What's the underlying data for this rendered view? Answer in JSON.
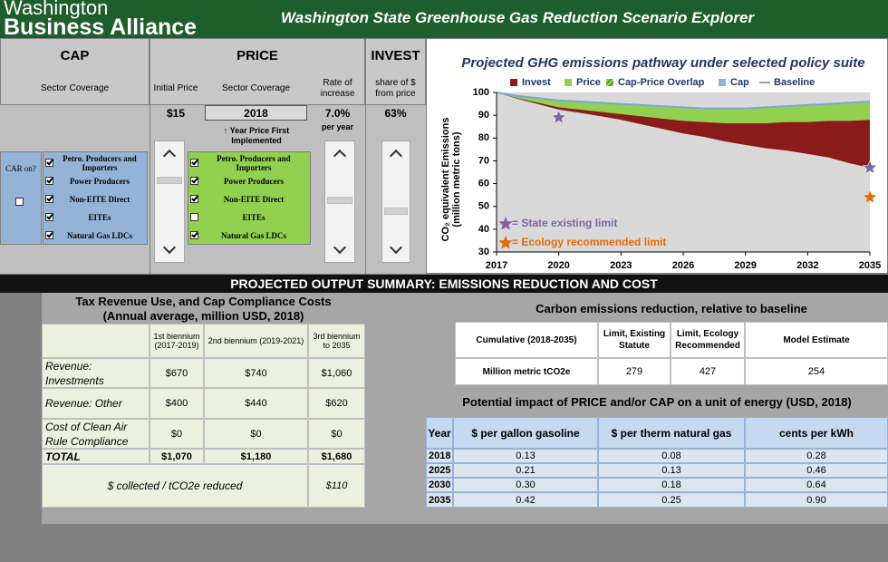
{
  "header": {
    "logo": [
      "Washington",
      "Business Alliance"
    ],
    "title": "Washington State Greenhouse Gas Reduction Scenario Explorer"
  },
  "controls": {
    "sections": [
      "CAP",
      "PRICE",
      "INVEST"
    ],
    "subheaders": [
      "Sector Coverage",
      "Initial Price",
      "Sector Coverage",
      "Rate of increase",
      "share of $ from price"
    ],
    "initial_price": "$15",
    "start_year": "2018",
    "year_note": "↑ Year Price First Implemented",
    "rate": "7.0%",
    "rate_unit": "per year",
    "invest_share": "63%",
    "cap_on_label": "CAR on?",
    "cap_on": false,
    "cap_sectors": [
      {
        "label": "Petro. Producers and Importers",
        "checked": true
      },
      {
        "label": "Power Producers",
        "checked": true
      },
      {
        "label": "Non-EITE Direct",
        "checked": true
      },
      {
        "label": "EITEs",
        "checked": true
      },
      {
        "label": "Natural Gas LDCs",
        "checked": true
      }
    ],
    "price_sectors": [
      {
        "label": "Petro. Producers and Importers",
        "checked": true
      },
      {
        "label": "Power Producers",
        "checked": true
      },
      {
        "label": "Non-EITE Direct",
        "checked": true
      },
      {
        "label": "EITEs",
        "checked": false
      },
      {
        "label": "Natural Gas LDCs",
        "checked": true
      }
    ]
  },
  "chart_data": {
    "type": "area",
    "title": "Projected GHG emissions pathway under selected policy suite",
    "ylabel": [
      "CO₂ equivalent Emissions",
      "(million metric tons)"
    ],
    "x": [
      2017,
      2018,
      2019,
      2020,
      2021,
      2022,
      2023,
      2024,
      2025,
      2026,
      2027,
      2028,
      2029,
      2030,
      2031,
      2032,
      2033,
      2034,
      2035
    ],
    "series": [
      {
        "name": "Invest",
        "type": "area",
        "color": "#8b1a1a",
        "values": [
          0,
          0.3,
          0.6,
          1,
          1.4,
          1.9,
          2.5,
          3.5,
          4.5,
          5.5,
          6.5,
          8,
          9.5,
          11,
          12.5,
          14,
          16,
          18.5,
          21
        ]
      },
      {
        "name": "Price",
        "type": "area",
        "color": "#92d050",
        "values": [
          0,
          1,
          2,
          3,
          3.5,
          4,
          4.5,
          5,
          5.5,
          6,
          6,
          6.5,
          6.5,
          7,
          7,
          7.5,
          7.5,
          8,
          8
        ]
      },
      {
        "name": "Cap-Price Overlap",
        "type": "area",
        "color": "#4f9a3c",
        "hatch": true,
        "values": [
          0,
          0,
          0,
          0,
          0,
          0,
          0,
          0,
          0,
          0,
          0,
          0,
          0,
          0,
          0,
          0,
          0,
          0,
          0
        ]
      },
      {
        "name": "Cap",
        "type": "area",
        "color": "#8db4e2",
        "values": [
          0,
          0,
          0,
          0,
          0,
          0,
          0,
          0,
          0,
          0,
          0,
          0,
          0,
          0,
          0,
          0,
          0,
          0,
          0
        ]
      },
      {
        "name": "Baseline",
        "type": "line",
        "color": "#7ea6d6",
        "values": [
          100,
          98.5,
          97.5,
          96.5,
          96,
          95.5,
          95,
          94.5,
          94,
          93.5,
          93,
          93,
          93,
          93.5,
          94,
          94.5,
          95,
          95.5,
          96
        ]
      }
    ],
    "markers": [
      {
        "name": "= State existing limit",
        "color": "#8064a2",
        "x": [
          2020,
          2035
        ],
        "y": [
          89,
          67
        ]
      },
      {
        "name": "= Ecology recommended limit",
        "color": "#e46c0a",
        "x": [
          2035
        ],
        "y": [
          54
        ]
      }
    ],
    "xlim": [
      2017,
      2035
    ],
    "xticks": [
      2017,
      2020,
      2023,
      2026,
      2029,
      2032,
      2035
    ],
    "ylim": [
      30,
      100
    ],
    "yticks": [
      30,
      40,
      50,
      60,
      70,
      80,
      90,
      100
    ],
    "grid": false
  },
  "summary": {
    "title": "PROJECTED OUTPUT SUMMARY: EMISSIONS REDUCTION AND COST",
    "revenue_table": {
      "title": [
        "Tax Revenue Use, and Cap Compliance Costs",
        "(Annual average, million USD, 2018)"
      ],
      "columns": [
        "1st biennium (2017-2019)",
        "2nd biennium (2019-2021)",
        "3rd biennium to 2035"
      ],
      "rows": [
        [
          "Revenue: Investments",
          "$670",
          "$740",
          "$1,060"
        ],
        [
          "Revenue: Other",
          "$400",
          "$440",
          "$620"
        ],
        [
          "Cost of Clean Air Rule Compliance",
          "$0",
          "$0",
          "$0"
        ],
        [
          "TOTAL",
          "$1,070",
          "$1,180",
          "$1,680"
        ]
      ],
      "per_ton_label": "$ collected / tCO2e reduced",
      "per_ton_value": "$110"
    },
    "reduction": {
      "title": "Carbon emissions reduction, relative to baseline",
      "columns": [
        "Cumulative (2018-2035)",
        "Limit, Existing Statute",
        "Limit, Ecology Recommended",
        "Model Estimate"
      ],
      "row": [
        "Million metric tCO2e",
        279,
        427,
        254
      ]
    },
    "energy": {
      "title": "Potential impact of PRICE and/or CAP on a unit of energy (USD, 2018)",
      "columns": [
        "Year",
        "$ per gallon gasoline",
        "$ per therm natural gas",
        "cents per kWh"
      ],
      "rows": [
        [
          "2018",
          "0.13",
          "0.08",
          "0.28"
        ],
        [
          "2025",
          "0.21",
          "0.13",
          "0.46"
        ],
        [
          "2030",
          "0.30",
          "0.18",
          "0.64"
        ],
        [
          "2035",
          "0.42",
          "0.25",
          "0.90"
        ]
      ]
    }
  }
}
